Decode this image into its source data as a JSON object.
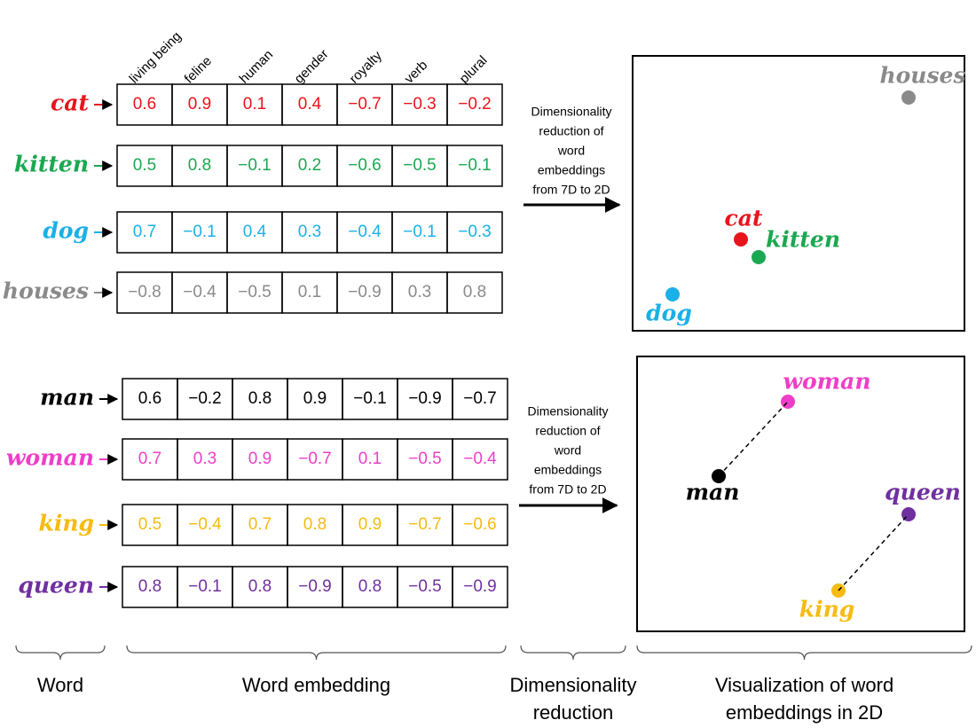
{
  "features": [
    "living being",
    "feline",
    "human",
    "gender",
    "royalty",
    "verb",
    "plural"
  ],
  "groups": [
    {
      "words": [
        {
          "word": "cat",
          "color": "#e8141c",
          "embedding": [
            "0.6",
            "0.9",
            "0.1",
            "0.4",
            "−0.7",
            "−0.3",
            "−0.2"
          ]
        },
        {
          "word": "kitten",
          "color": "#1aa850",
          "embedding": [
            "0.5",
            "0.8",
            "−0.1",
            "0.2",
            "−0.6",
            "−0.5",
            "−0.1"
          ]
        },
        {
          "word": "dog",
          "color": "#1ab0e8",
          "embedding": [
            "0.7",
            "−0.1",
            "0.4",
            "0.3",
            "−0.4",
            "−0.1",
            "−0.3"
          ]
        },
        {
          "word": "houses",
          "color": "#8a8a8a",
          "embedding": [
            "−0.8",
            "−0.4",
            "−0.5",
            "0.1",
            "−0.9",
            "0.3",
            "0.8"
          ]
        }
      ],
      "arrow_label": [
        "Dimensionality",
        "reduction of",
        "word",
        "embeddings",
        "from 7D to 2D"
      ]
    },
    {
      "words": [
        {
          "word": "man",
          "color": "#000000",
          "embedding": [
            "0.6",
            "−0.2",
            "0.8",
            "0.9",
            "−0.1",
            "−0.9",
            "−0.7"
          ]
        },
        {
          "word": "woman",
          "color": "#ee3ec8",
          "embedding": [
            "0.7",
            "0.3",
            "0.9",
            "−0.7",
            "0.1",
            "−0.5",
            "−0.4"
          ]
        },
        {
          "word": "king",
          "color": "#f5bb10",
          "embedding": [
            "0.5",
            "−0.4",
            "0.7",
            "0.8",
            "0.9",
            "−0.7",
            "−0.6"
          ]
        },
        {
          "word": "queen",
          "color": "#7030a0",
          "embedding": [
            "0.8",
            "−0.1",
            "0.8",
            "−0.9",
            "0.8",
            "−0.5",
            "−0.9"
          ]
        }
      ],
      "arrow_label": [
        "Dimensionality",
        "reduction of",
        "word",
        "embeddings",
        "from 7D to 2D"
      ]
    }
  ],
  "footer": [
    [
      "Word"
    ],
    [
      "Word embedding"
    ],
    [
      "Dimensionality",
      "reduction"
    ],
    [
      "Visualization of word",
      "embeddings  in 2D"
    ]
  ]
}
